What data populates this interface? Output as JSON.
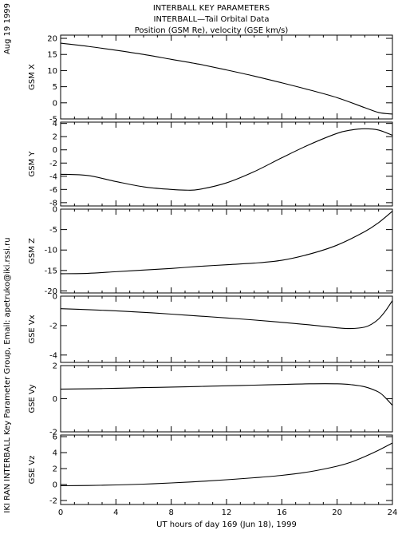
{
  "date_label": "Aug 19 1999",
  "credit": "IKI RAN INTERBALL Key Parameter Group, Email: apetruko@iki.rssi.ru",
  "chart_data": {
    "type": "line",
    "title": [
      "INTERBALL KEY PARAMETERS",
      "INTERBALL—Tail Orbital Data",
      "Position (GSM Re), velocity (GSE km/s)"
    ],
    "xlabel": "UT hours of day 169 (Jun 18), 1999",
    "xlim": [
      0,
      24
    ],
    "xticks": [
      0,
      4,
      8,
      12,
      16,
      20,
      24
    ],
    "panels": [
      {
        "name": "GSM X",
        "ylim": [
          -5,
          21
        ],
        "yticks": [
          -5,
          0,
          5,
          10,
          15,
          20
        ],
        "x": [
          0,
          2,
          4,
          6,
          8,
          10,
          12,
          14,
          16,
          18,
          20,
          22,
          23,
          24
        ],
        "values": [
          18.5,
          17.5,
          16.3,
          15.0,
          13.5,
          12.0,
          10.2,
          8.3,
          6.2,
          4.0,
          1.6,
          -1.5,
          -3.0,
          -3.5
        ]
      },
      {
        "name": "GSM Y",
        "ylim": [
          -8.5,
          4.2
        ],
        "yticks": [
          -8,
          -6,
          -4,
          -2,
          0,
          2,
          4
        ],
        "x": [
          0,
          2,
          4,
          6,
          8,
          9,
          10,
          12,
          14,
          16,
          18,
          20,
          21,
          22,
          23,
          24
        ],
        "values": [
          -3.7,
          -3.9,
          -4.8,
          -5.6,
          -6.0,
          -6.1,
          -6.0,
          -5.0,
          -3.3,
          -1.2,
          0.8,
          2.5,
          3.0,
          3.2,
          3.0,
          2.2
        ]
      },
      {
        "name": "GSM Z",
        "ylim": [
          -20.5,
          0
        ],
        "yticks": [
          -20,
          -15,
          -10,
          -5,
          0
        ],
        "x": [
          0,
          2,
          4,
          6,
          8,
          10,
          12,
          14,
          16,
          18,
          20,
          22,
          23,
          24
        ],
        "values": [
          -15.8,
          -15.7,
          -15.3,
          -14.9,
          -14.5,
          -14.0,
          -13.6,
          -13.2,
          -12.5,
          -11.0,
          -8.8,
          -5.5,
          -3.3,
          -0.5
        ]
      },
      {
        "name": "GSE Vx",
        "ylim": [
          -4.5,
          0
        ],
        "yticks": [
          -4,
          -2,
          0
        ],
        "x": [
          0,
          2,
          4,
          6,
          8,
          10,
          12,
          14,
          16,
          18,
          20,
          21,
          22,
          22.5,
          23,
          23.5,
          24
        ],
        "values": [
          -0.85,
          -0.92,
          -1.0,
          -1.1,
          -1.22,
          -1.35,
          -1.48,
          -1.62,
          -1.78,
          -1.95,
          -2.15,
          -2.2,
          -2.1,
          -1.9,
          -1.55,
          -1.0,
          -0.3
        ]
      },
      {
        "name": "GSE Vy",
        "ylim": [
          -2,
          2
        ],
        "yticks": [
          -2,
          0,
          2
        ],
        "x": [
          0,
          2,
          4,
          6,
          8,
          10,
          12,
          14,
          16,
          18,
          20,
          21,
          22,
          23,
          23.5,
          24
        ],
        "values": [
          0.58,
          0.6,
          0.63,
          0.67,
          0.7,
          0.74,
          0.78,
          0.82,
          0.86,
          0.9,
          0.9,
          0.85,
          0.72,
          0.4,
          0.05,
          -0.4
        ]
      },
      {
        "name": "GSE Vz",
        "ylim": [
          -2.5,
          6.2
        ],
        "yticks": [
          -2,
          0,
          2,
          4,
          6
        ],
        "x": [
          0,
          2,
          4,
          6,
          8,
          10,
          12,
          14,
          16,
          18,
          20,
          21,
          22,
          23,
          24
        ],
        "values": [
          -0.15,
          -0.12,
          -0.05,
          0.05,
          0.2,
          0.38,
          0.6,
          0.85,
          1.15,
          1.6,
          2.3,
          2.8,
          3.5,
          4.3,
          5.2
        ]
      }
    ]
  }
}
